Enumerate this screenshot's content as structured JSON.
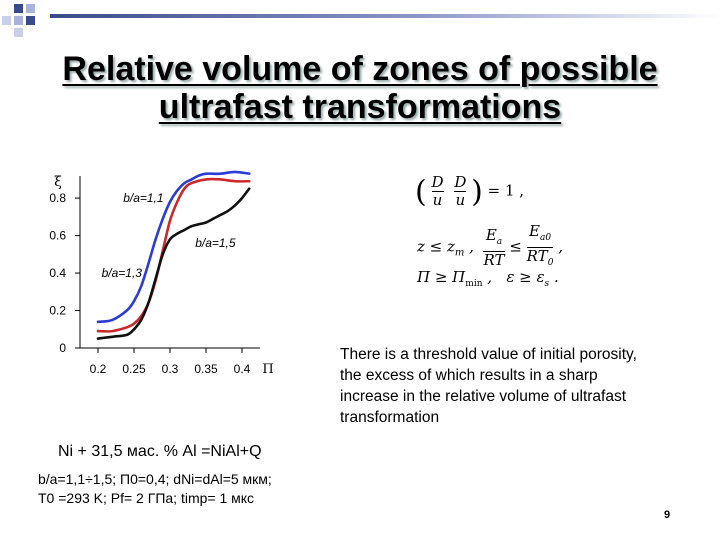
{
  "title": {
    "line1": "Relative volume of zones of possible",
    "line2": "ultrafast transformations"
  },
  "chart_data": {
    "type": "line",
    "ylabel": "ξ",
    "xlabel": "Π",
    "xlim": [
      0.175,
      0.425
    ],
    "ylim": [
      0,
      0.95
    ],
    "x_ticks": [
      "0.2",
      "0.25",
      "0.3",
      "0.35",
      "0.4"
    ],
    "y_ticks": [
      "0",
      "0.2",
      "0.4",
      "0.6",
      "0.8"
    ],
    "series": [
      {
        "name": "b/a=1,1",
        "color": "#2b3bd6",
        "x": [
          0.2,
          0.22,
          0.24,
          0.25,
          0.26,
          0.27,
          0.28,
          0.29,
          0.3,
          0.31,
          0.32,
          0.33,
          0.34,
          0.35,
          0.37,
          0.39,
          0.41
        ],
        "y": [
          0.14,
          0.15,
          0.2,
          0.25,
          0.33,
          0.45,
          0.58,
          0.69,
          0.78,
          0.84,
          0.88,
          0.9,
          0.92,
          0.93,
          0.93,
          0.94,
          0.93
        ]
      },
      {
        "name": "b/a=1,3",
        "color": "#cc2a2a",
        "x": [
          0.2,
          0.22,
          0.24,
          0.25,
          0.26,
          0.27,
          0.28,
          0.29,
          0.3,
          0.31,
          0.32,
          0.33,
          0.35,
          0.37,
          0.39,
          0.41
        ],
        "y": [
          0.09,
          0.09,
          0.11,
          0.13,
          0.17,
          0.24,
          0.36,
          0.52,
          0.68,
          0.78,
          0.85,
          0.88,
          0.9,
          0.9,
          0.89,
          0.89
        ]
      },
      {
        "name": "b/a=1,5",
        "color": "#111111",
        "x": [
          0.2,
          0.22,
          0.24,
          0.25,
          0.26,
          0.27,
          0.28,
          0.29,
          0.3,
          0.31,
          0.32,
          0.33,
          0.34,
          0.35,
          0.36,
          0.37,
          0.38,
          0.39,
          0.4,
          0.41
        ],
        "y": [
          0.05,
          0.06,
          0.07,
          0.1,
          0.15,
          0.24,
          0.37,
          0.5,
          0.58,
          0.61,
          0.63,
          0.65,
          0.66,
          0.67,
          0.69,
          0.71,
          0.73,
          0.76,
          0.8,
          0.85
        ]
      }
    ],
    "annotations": [
      "b/a=1,1",
      "b/a=1,5",
      "b/a=1,3"
    ]
  },
  "formula": {
    "line1": "(D/u · D/u) = 1,",
    "line2": "z ≤ z_m , E_a/RT ≤ E_a0/RT_0 ,",
    "line3": "Π ≥ Π_min , ε ≥ ε_s ."
  },
  "note": "There is a threshold value of initial porosity, the excess of which results in a sharp increase in the relative volume of ultrafast transformation",
  "composition": "Ni + 31,5 мас. % Al =NiAl+Q",
  "params": {
    "line1": "b/a=1,1÷1,5; П0=0,4; dNi=dAl=5 мкм;",
    "line2": "T0 =293 K; Pf= 2 ГПа; timp= 1 мкс"
  },
  "page_number": "9",
  "colors": {
    "accent": "#3a4a8c",
    "series1": "#2b3bd6",
    "series2": "#cc2a2a",
    "series3": "#111111"
  }
}
